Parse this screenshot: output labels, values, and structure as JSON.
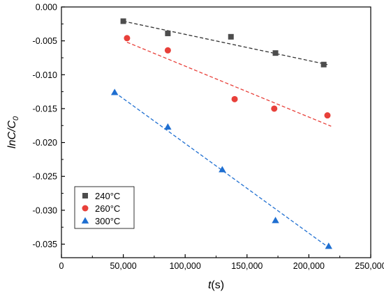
{
  "chart_data": {
    "type": "scatter",
    "title": "",
    "xlabel_italic": "t",
    "xlabel_rest": "(s)",
    "ylabel_main": "lnC/C",
    "ylabel_sub": "0",
    "xlim": [
      0,
      250000
    ],
    "ylim": [
      -0.037,
      0.0
    ],
    "x_ticks": [
      0,
      50000,
      100000,
      150000,
      200000,
      250000
    ],
    "x_tick_labels": [
      "0",
      "50,000",
      "100,000",
      "150,000",
      "200,000",
      "250,000"
    ],
    "y_ticks": [
      0.0,
      -0.005,
      -0.01,
      -0.015,
      -0.02,
      -0.025,
      -0.03,
      -0.035
    ],
    "y_tick_labels": [
      "0.000",
      "-0.005",
      "-0.010",
      "-0.015",
      "-0.020",
      "-0.025",
      "-0.030",
      "-0.035"
    ],
    "grid": false,
    "legend_position": "bottom-left",
    "series": [
      {
        "name": "240°C",
        "marker": "square",
        "color": "#4d4d4d",
        "fit_color": "#333333",
        "x": [
          50000,
          86000,
          137000,
          173000,
          212000
        ],
        "y": [
          -0.0021,
          -0.0039,
          -0.0044,
          -0.0068,
          -0.0085
        ],
        "fit": {
          "x": [
            50000,
            215000
          ],
          "y": [
            -0.0021,
            -0.0085
          ]
        }
      },
      {
        "name": "260°C",
        "marker": "circle",
        "color": "#e8403a",
        "fit_color": "#e8403a",
        "x": [
          53000,
          86000,
          140000,
          172000,
          215000
        ],
        "y": [
          -0.0046,
          -0.0064,
          -0.0136,
          -0.015,
          -0.016
        ],
        "fit": {
          "x": [
            53000,
            218000
          ],
          "y": [
            -0.0052,
            -0.0176
          ]
        }
      },
      {
        "name": "300°C",
        "marker": "triangle",
        "color": "#1f6fd1",
        "fit_color": "#1f6fd1",
        "x": [
          43000,
          86000,
          130000,
          173000,
          216000
        ],
        "y": [
          -0.0126,
          -0.0177,
          -0.024,
          -0.0315,
          -0.0353
        ],
        "fit": {
          "x": [
            43000,
            216000
          ],
          "y": [
            -0.0126,
            -0.0355
          ]
        }
      }
    ]
  }
}
